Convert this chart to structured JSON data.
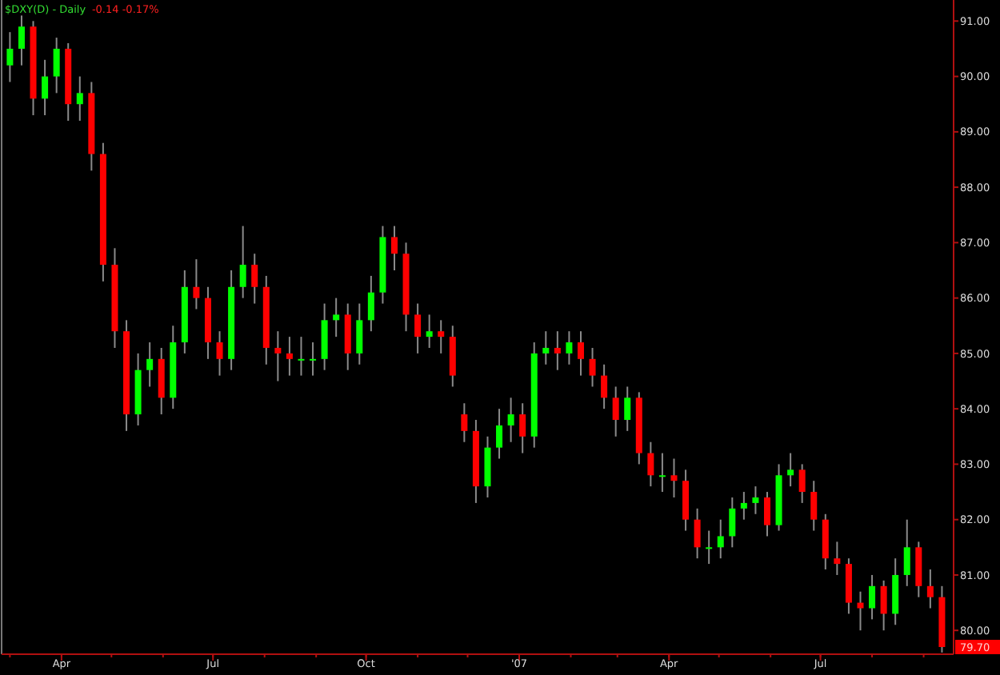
{
  "chart_data": {
    "type": "candlestick",
    "title": "$DXY(D) - Daily",
    "subtitle": "-0.14  -0.17%",
    "x": [
      "2006-03-01",
      "2006-03-08",
      "2006-03-15",
      "2006-03-22",
      "2006-03-29",
      "2006-04-05",
      "2006-04-12",
      "2006-04-19",
      "2006-04-26",
      "2006-05-03",
      "2006-05-10",
      "2006-05-17",
      "2006-05-24",
      "2006-05-31",
      "2006-06-07",
      "2006-06-14",
      "2006-06-21",
      "2006-06-28",
      "2006-07-05",
      "2006-07-12",
      "2006-07-19",
      "2006-07-26",
      "2006-08-02",
      "2006-08-09",
      "2006-08-16",
      "2006-08-23",
      "2006-08-30",
      "2006-09-06",
      "2006-09-13",
      "2006-09-20",
      "2006-09-27",
      "2006-10-04",
      "2006-10-11",
      "2006-10-18",
      "2006-10-25",
      "2006-11-01",
      "2006-11-08",
      "2006-11-15",
      "2006-11-22",
      "2006-11-29",
      "2006-12-06",
      "2006-12-13",
      "2006-12-20",
      "2006-12-27",
      "2007-01-03",
      "2007-01-10",
      "2007-01-17",
      "2007-01-24",
      "2007-01-31",
      "2007-02-07",
      "2007-02-14",
      "2007-02-21",
      "2007-02-28",
      "2007-03-07",
      "2007-03-14",
      "2007-03-21",
      "2007-03-28",
      "2007-04-04",
      "2007-04-11",
      "2007-04-18",
      "2007-04-25",
      "2007-05-02",
      "2007-05-09",
      "2007-05-16",
      "2007-05-23",
      "2007-05-30",
      "2007-06-06",
      "2007-06-13",
      "2007-06-20",
      "2007-06-27",
      "2007-07-04",
      "2007-07-11",
      "2007-07-18",
      "2007-07-25",
      "2007-08-01",
      "2007-08-08",
      "2007-08-15",
      "2007-08-22",
      "2007-08-29",
      "2007-09-05",
      "2007-09-12"
    ],
    "ohlc": [
      [
        90.2,
        90.8,
        89.9,
        90.5
      ],
      [
        90.5,
        91.1,
        90.2,
        90.9
      ],
      [
        90.9,
        91.0,
        89.3,
        89.6
      ],
      [
        89.6,
        90.3,
        89.3,
        90.0
      ],
      [
        90.0,
        90.7,
        89.7,
        90.5
      ],
      [
        90.5,
        90.6,
        89.2,
        89.5
      ],
      [
        89.5,
        90.0,
        89.2,
        89.7
      ],
      [
        89.7,
        89.9,
        88.3,
        88.6
      ],
      [
        88.6,
        88.8,
        86.3,
        86.6
      ],
      [
        86.6,
        86.9,
        85.1,
        85.4
      ],
      [
        85.4,
        85.6,
        83.6,
        83.9
      ],
      [
        83.9,
        85.0,
        83.7,
        84.7
      ],
      [
        84.7,
        85.2,
        84.4,
        84.9
      ],
      [
        84.9,
        85.1,
        83.9,
        84.2
      ],
      [
        84.2,
        85.5,
        84.0,
        85.2
      ],
      [
        85.2,
        86.5,
        85.0,
        86.2
      ],
      [
        86.2,
        86.7,
        85.8,
        86.0
      ],
      [
        86.0,
        86.2,
        84.9,
        85.2
      ],
      [
        85.2,
        85.4,
        84.6,
        84.9
      ],
      [
        84.9,
        86.5,
        84.7,
        86.2
      ],
      [
        86.2,
        87.3,
        86.0,
        86.6
      ],
      [
        86.6,
        86.8,
        85.9,
        86.2
      ],
      [
        86.2,
        86.4,
        84.8,
        85.1
      ],
      [
        85.1,
        85.4,
        84.5,
        85.0
      ],
      [
        85.0,
        85.3,
        84.6,
        84.9
      ],
      [
        84.9,
        85.3,
        84.6,
        84.9
      ],
      [
        84.9,
        85.2,
        84.6,
        84.9
      ],
      [
        84.9,
        85.9,
        84.7,
        85.6
      ],
      [
        85.6,
        86.0,
        85.3,
        85.7
      ],
      [
        85.7,
        85.9,
        84.7,
        85.0
      ],
      [
        85.0,
        85.9,
        84.8,
        85.6
      ],
      [
        85.6,
        86.4,
        85.4,
        86.1
      ],
      [
        86.1,
        87.3,
        85.9,
        87.1
      ],
      [
        87.1,
        87.3,
        86.5,
        86.8
      ],
      [
        86.8,
        87.0,
        85.4,
        85.7
      ],
      [
        85.7,
        85.9,
        85.0,
        85.3
      ],
      [
        85.3,
        85.7,
        85.1,
        85.4
      ],
      [
        85.4,
        85.6,
        85.0,
        85.3
      ],
      [
        85.3,
        85.5,
        84.4,
        84.6
      ],
      [
        83.9,
        84.1,
        83.4,
        83.6
      ],
      [
        83.6,
        83.8,
        82.3,
        82.6
      ],
      [
        82.6,
        83.5,
        82.4,
        83.3
      ],
      [
        83.3,
        84.0,
        83.1,
        83.7
      ],
      [
        83.7,
        84.2,
        83.4,
        83.9
      ],
      [
        83.9,
        84.1,
        83.2,
        83.5
      ],
      [
        83.5,
        85.2,
        83.3,
        85.0
      ],
      [
        85.0,
        85.4,
        84.8,
        85.1
      ],
      [
        85.1,
        85.4,
        84.7,
        85.0
      ],
      [
        85.0,
        85.4,
        84.8,
        85.2
      ],
      [
        85.2,
        85.4,
        84.6,
        84.9
      ],
      [
        84.9,
        85.1,
        84.4,
        84.6
      ],
      [
        84.6,
        84.8,
        84.0,
        84.2
      ],
      [
        84.2,
        84.4,
        83.5,
        83.8
      ],
      [
        83.8,
        84.4,
        83.6,
        84.2
      ],
      [
        84.2,
        84.3,
        83.0,
        83.2
      ],
      [
        83.2,
        83.4,
        82.6,
        82.8
      ],
      [
        82.8,
        83.2,
        82.5,
        82.8
      ],
      [
        82.8,
        83.1,
        82.4,
        82.7
      ],
      [
        82.7,
        82.9,
        81.8,
        82.0
      ],
      [
        82.0,
        82.2,
        81.3,
        81.5
      ],
      [
        81.5,
        81.8,
        81.2,
        81.5
      ],
      [
        81.5,
        82.0,
        81.3,
        81.7
      ],
      [
        81.7,
        82.4,
        81.5,
        82.2
      ],
      [
        82.2,
        82.5,
        82.0,
        82.3
      ],
      [
        82.3,
        82.6,
        82.1,
        82.4
      ],
      [
        82.4,
        82.5,
        81.7,
        81.9
      ],
      [
        81.9,
        83.0,
        81.8,
        82.8
      ],
      [
        82.8,
        83.2,
        82.6,
        82.9
      ],
      [
        82.9,
        83.0,
        82.3,
        82.5
      ],
      [
        82.5,
        82.7,
        81.8,
        82.0
      ],
      [
        82.0,
        82.1,
        81.1,
        81.3
      ],
      [
        81.3,
        81.6,
        81.0,
        81.2
      ],
      [
        81.2,
        81.3,
        80.3,
        80.5
      ],
      [
        80.5,
        80.7,
        80.0,
        80.4
      ],
      [
        80.4,
        81.0,
        80.2,
        80.8
      ],
      [
        80.8,
        80.9,
        80.0,
        80.3
      ],
      [
        80.3,
        81.3,
        80.1,
        81.0
      ],
      [
        81.0,
        82.0,
        80.8,
        81.5
      ],
      [
        81.5,
        81.6,
        80.6,
        80.8
      ],
      [
        80.8,
        81.1,
        80.4,
        80.6
      ],
      [
        80.6,
        80.8,
        79.6,
        79.7
      ]
    ],
    "colors": [
      "#00ff00",
      "#00ff00",
      "#ff0000",
      "#00ff00",
      "#00ff00",
      "#ff0000",
      "#00ff00",
      "#ff0000",
      "#ff0000",
      "#ff0000",
      "#ff0000",
      "#00ff00",
      "#00ff00",
      "#ff0000",
      "#00ff00",
      "#00ff00",
      "#ff0000",
      "#ff0000",
      "#ff0000",
      "#00ff00",
      "#00ff00",
      "#ff0000",
      "#ff0000",
      "#ff0000",
      "#ff0000",
      "#00ff00",
      "#00ff00",
      "#00ff00",
      "#00ff00",
      "#ff0000",
      "#00ff00",
      "#00ff00",
      "#00ff00",
      "#ff0000",
      "#ff0000",
      "#ff0000",
      "#00ff00",
      "#ff0000",
      "#ff0000",
      "#ff0000",
      "#ff0000",
      "#00ff00",
      "#00ff00",
      "#00ff00",
      "#ff0000",
      "#00ff00",
      "#00ff00",
      "#ff0000",
      "#00ff00",
      "#ff0000",
      "#ff0000",
      "#ff0000",
      "#ff0000",
      "#00ff00",
      "#ff0000",
      "#ff0000",
      "#00ff00",
      "#ff0000",
      "#ff0000",
      "#ff0000",
      "#00ff00",
      "#00ff00",
      "#00ff00",
      "#00ff00",
      "#00ff00",
      "#ff0000",
      "#00ff00",
      "#00ff00",
      "#ff0000",
      "#ff0000",
      "#ff0000",
      "#ff0000",
      "#ff0000",
      "#ff0000",
      "#00ff00",
      "#ff0000",
      "#00ff00",
      "#00ff00",
      "#ff0000",
      "#ff0000",
      "#ff0000"
    ],
    "xlim": [
      "2006-02-24",
      "2007-09-19"
    ],
    "xticks": [
      {
        "value": "2006-04-01",
        "label": "Apr"
      },
      {
        "value": "2006-07-01",
        "label": "Jul"
      },
      {
        "value": "2006-10-01",
        "label": "Oct"
      },
      {
        "value": "2007-01-01",
        "label": "'07"
      },
      {
        "value": "2007-04-01",
        "label": "Apr"
      },
      {
        "value": "2007-07-01",
        "label": "Jul"
      }
    ],
    "ylim": [
      79.57,
      91.38
    ],
    "yticks": [
      {
        "value": 80,
        "label": "80.00"
      },
      {
        "value": 81,
        "label": "81.00"
      },
      {
        "value": 82,
        "label": "82.00"
      },
      {
        "value": 83,
        "label": "83.00"
      },
      {
        "value": 84,
        "label": "84.00"
      },
      {
        "value": 85,
        "label": "85.00"
      },
      {
        "value": 86,
        "label": "86.00"
      },
      {
        "value": 87,
        "label": "87.00"
      },
      {
        "value": 88,
        "label": "88.00"
      },
      {
        "value": 89,
        "label": "89.00"
      },
      {
        "value": 90,
        "label": "90.00"
      },
      {
        "value": 91,
        "label": "91.00"
      }
    ],
    "annotations": [
      {
        "text": "79.70",
        "y": 79.7
      }
    ],
    "grid": false
  }
}
